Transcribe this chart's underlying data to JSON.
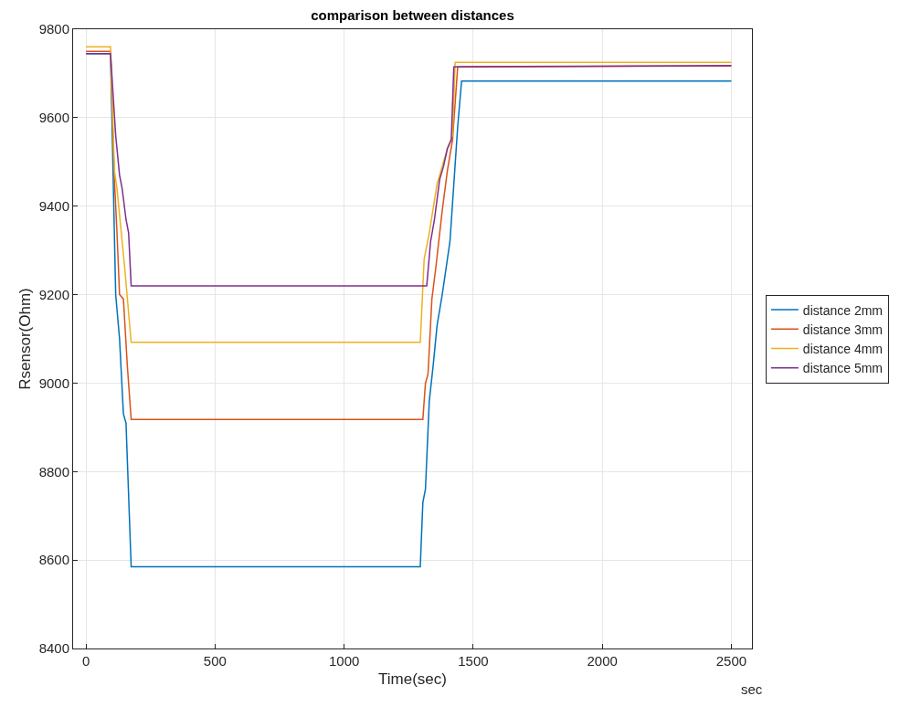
{
  "chart_data": {
    "type": "line",
    "title": "comparison between distances",
    "xlabel": "Time(sec)",
    "ylabel": "Rsensor(Ohm)",
    "xlim": [
      -50,
      2580
    ],
    "xticks": [
      0,
      500,
      1000,
      1500,
      2000,
      2500
    ],
    "ylim": [
      8400,
      9800
    ],
    "yticks": [
      8400,
      8600,
      8800,
      9000,
      9200,
      9400,
      9600,
      9800
    ],
    "grid": true,
    "legend": "right",
    "marker": "none",
    "line_style": "solid",
    "annotations": [
      "sec"
    ],
    "series": [
      {
        "name": "distance 2mm",
        "color": "#0072bd",
        "x": [
          0,
          95,
          115,
          130,
          145,
          155,
          175,
          1295,
          1305,
          1315,
          1330,
          1345,
          1360,
          1380,
          1410,
          1440,
          1455,
          2500
        ],
        "values": [
          9745,
          9745,
          9200,
          9100,
          8930,
          8910,
          8585,
          8585,
          8730,
          8760,
          8960,
          9040,
          9130,
          9200,
          9320,
          9580,
          9683,
          9683
        ]
      },
      {
        "name": "distance 3mm",
        "color": "#d95319",
        "x": [
          0,
          95,
          110,
          120,
          130,
          145,
          160,
          175,
          1305,
          1315,
          1325,
          1340,
          1355,
          1380,
          1400,
          1420,
          1440,
          2500
        ],
        "values": [
          9750,
          9750,
          9460,
          9340,
          9200,
          9190,
          9040,
          8918,
          8918,
          9000,
          9020,
          9190,
          9260,
          9390,
          9480,
          9550,
          9715,
          9717
        ]
      },
      {
        "name": "distance 4mm",
        "color": "#edb120",
        "x": [
          0,
          95,
          110,
          120,
          150,
          175,
          1295,
          1310,
          1330,
          1360,
          1400,
          1420,
          1430,
          2500
        ],
        "values": [
          9760,
          9760,
          9480,
          9440,
          9260,
          9092,
          9092,
          9280,
          9340,
          9450,
          9530,
          9560,
          9725,
          9725
        ]
      },
      {
        "name": "distance 5mm",
        "color": "#7e2f8e",
        "x": [
          0,
          95,
          115,
          130,
          140,
          155,
          165,
          175,
          1320,
          1335,
          1350,
          1370,
          1385,
          1400,
          1415,
          1425,
          2500
        ],
        "values": [
          9745,
          9745,
          9560,
          9470,
          9440,
          9370,
          9340,
          9220,
          9220,
          9320,
          9370,
          9460,
          9490,
          9530,
          9550,
          9715,
          9718
        ]
      }
    ]
  }
}
